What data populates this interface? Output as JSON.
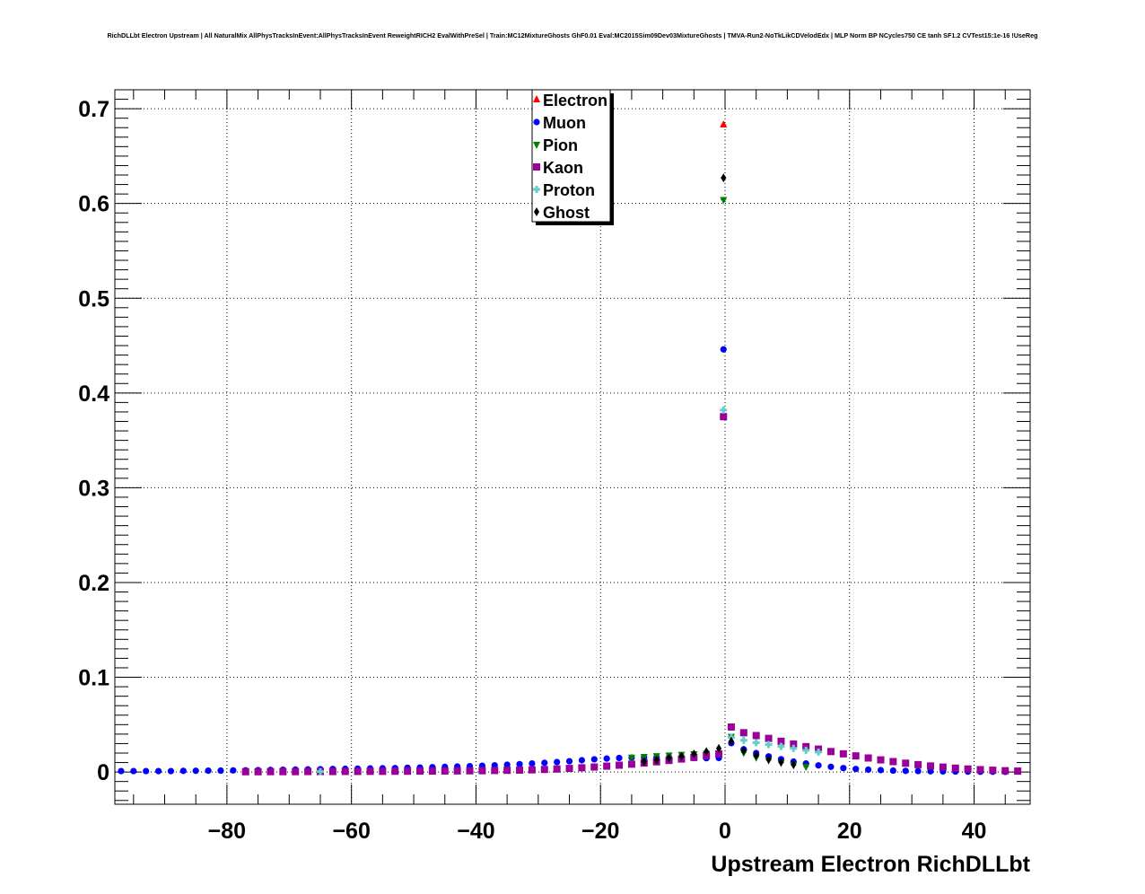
{
  "chart_data": {
    "type": "scatter",
    "title": "RichDLLbt Electron Upstream | All NaturalMix AllPhysTracksInEvent:AllPhysTracksInEvent ReweightRICH2 EvalWithPreSel | Train:MC12MixtureGhosts GhF0.01 Eval:MC2015Sim09Dev03MixtureGhosts | TMVA-Run2-NoTkLikCDVelodEdx | MLP Norm BP NCycles750 CE tanh SF1.2 CVTest15:1e-16 !UseReg",
    "xlabel": "Upstream Electron RichDLLbt",
    "ylabel": "",
    "xlim": [
      -98,
      49
    ],
    "ylim": [
      -0.034,
      0.72
    ],
    "grid": true,
    "legend_position": "top-center",
    "x_ticks": [
      -80,
      -60,
      -40,
      -20,
      0,
      20,
      40
    ],
    "x_tick_labels": [
      "−80",
      "−60",
      "−40",
      "−20",
      "0",
      "20",
      "40"
    ],
    "y_ticks": [
      0,
      0.1,
      0.2,
      0.3,
      0.4,
      0.5,
      0.6,
      0.7
    ],
    "y_tick_labels": [
      "0",
      "0.1",
      "0.2",
      "0.3",
      "0.4",
      "0.5",
      "0.6",
      "0.7"
    ],
    "series": [
      {
        "name": "Electron",
        "color": "#ff0000",
        "marker": "triangle-up",
        "x": [
          -0.25
        ],
        "y": [
          0.683
        ]
      },
      {
        "name": "Muon",
        "color": "#0000ff",
        "marker": "circle",
        "x": [
          -97,
          -95,
          -93,
          -91,
          -89,
          -87,
          -85,
          -83,
          -81,
          -79,
          -77,
          -75,
          -73,
          -71,
          -69,
          -67,
          -65,
          -63,
          -61,
          -59,
          -57,
          -55,
          -53,
          -51,
          -49,
          -47,
          -45,
          -43,
          -41,
          -39,
          -37,
          -35,
          -33,
          -31,
          -29,
          -27,
          -25,
          -23,
          -21,
          -19,
          -17,
          -15,
          -13,
          -11,
          -9,
          -7,
          -5,
          -3,
          -1,
          -0.25,
          1,
          3,
          5,
          7,
          9,
          11,
          13,
          15,
          17,
          19,
          21,
          23,
          25,
          27,
          29,
          31,
          33,
          35,
          37,
          39,
          41,
          43,
          45
        ],
        "y": [
          0.001,
          0.001,
          0.001,
          0.001,
          0.001,
          0.0012,
          0.0013,
          0.0014,
          0.0015,
          0.0017,
          0.0018,
          0.002,
          0.0022,
          0.0024,
          0.0026,
          0.0028,
          0.003,
          0.0032,
          0.0034,
          0.0036,
          0.0038,
          0.004,
          0.0042,
          0.0045,
          0.0048,
          0.0051,
          0.0054,
          0.0058,
          0.0062,
          0.0066,
          0.0071,
          0.0077,
          0.0083,
          0.009,
          0.0097,
          0.0105,
          0.0114,
          0.0124,
          0.0134,
          0.0142,
          0.0148,
          0.0152,
          0.0154,
          0.0154,
          0.0152,
          0.015,
          0.0148,
          0.0146,
          0.0148,
          0.446,
          0.0305,
          0.024,
          0.02,
          0.0165,
          0.0135,
          0.011,
          0.009,
          0.007,
          0.0055,
          0.0042,
          0.0032,
          0.0025,
          0.002,
          0.0015,
          0.0012,
          0.001,
          0.0008,
          0.0006,
          0.0005,
          0.0004,
          0.0003,
          0.0003,
          0.0002
        ]
      },
      {
        "name": "Pion",
        "color": "#008000",
        "marker": "triangle-down",
        "x": [
          -15,
          -13,
          -11,
          -9,
          -7,
          -5,
          -3,
          -0.25,
          1,
          3,
          5,
          7,
          9,
          11,
          13
        ],
        "y": [
          0.0155,
          0.0162,
          0.017,
          0.0178,
          0.0185,
          0.019,
          0.0195,
          0.604,
          0.0375,
          0.0205,
          0.0155,
          0.0125,
          0.0098,
          0.0075,
          0.0057
        ]
      },
      {
        "name": "Kaon",
        "color": "#990099",
        "marker": "square",
        "x": [
          -77,
          -75,
          -73,
          -71,
          -69,
          -67,
          -65,
          -63,
          -61,
          -59,
          -57,
          -55,
          -53,
          -51,
          -49,
          -47,
          -45,
          -43,
          -41,
          -39,
          -37,
          -35,
          -33,
          -31,
          -29,
          -27,
          -25,
          -23,
          -21,
          -19,
          -17,
          -15,
          -13,
          -11,
          -9,
          -7,
          -5,
          -3,
          -1,
          -0.25,
          1,
          3,
          5,
          7,
          9,
          11,
          13,
          15,
          17,
          19,
          21,
          23,
          25,
          27,
          29,
          31,
          33,
          35,
          37,
          39,
          41,
          43,
          45,
          47
        ],
        "y": [
          0.0003,
          0.0003,
          0.0004,
          0.0004,
          0.0004,
          0.0005,
          0.0005,
          0.0005,
          0.0006,
          0.0006,
          0.0007,
          0.0007,
          0.0008,
          0.0009,
          0.001,
          0.001,
          0.0011,
          0.0012,
          0.0013,
          0.0014,
          0.0016,
          0.0018,
          0.002,
          0.0023,
          0.0027,
          0.0032,
          0.0038,
          0.0045,
          0.0053,
          0.0062,
          0.0072,
          0.0083,
          0.0095,
          0.0108,
          0.0122,
          0.0137,
          0.0154,
          0.0172,
          0.0192,
          0.375,
          0.0475,
          0.0415,
          0.0385,
          0.0355,
          0.0325,
          0.0295,
          0.0268,
          0.0242,
          0.0216,
          0.0192,
          0.017,
          0.0148,
          0.0128,
          0.011,
          0.0093,
          0.0078,
          0.0064,
          0.0052,
          0.0041,
          0.0032,
          0.0025,
          0.0019,
          0.0014,
          0.001
        ]
      },
      {
        "name": "Proton",
        "color": "#66cccc",
        "marker": "cross",
        "x": [
          -65,
          -0.25,
          1,
          3,
          5,
          7,
          9,
          11,
          13,
          15
        ],
        "y": [
          0.0005,
          0.382,
          0.0365,
          0.0335,
          0.031,
          0.029,
          0.027,
          0.025,
          0.023,
          0.021
        ]
      },
      {
        "name": "Ghost",
        "color": "#000000",
        "marker": "diamond",
        "x": [
          -13,
          -11,
          -9,
          -7,
          -5,
          -3,
          -1,
          -0.25,
          1,
          3,
          5,
          7,
          9,
          11
        ],
        "y": [
          0.011,
          0.0125,
          0.0145,
          0.0165,
          0.019,
          0.0215,
          0.025,
          0.627,
          0.0325,
          0.0225,
          0.0175,
          0.0135,
          0.0105,
          0.0078
        ]
      }
    ]
  }
}
